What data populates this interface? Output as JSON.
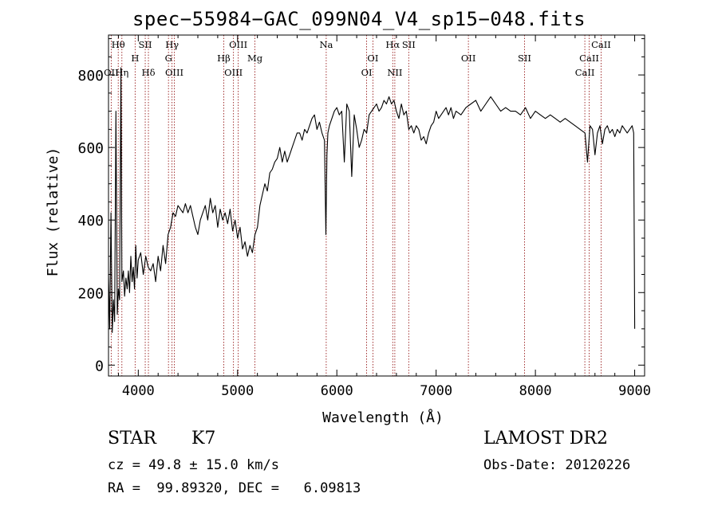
{
  "chart_data": {
    "type": "line",
    "title": "spec−55984−GAC_099N04_V4_sp15−048.fits",
    "xlabel": "Wavelength (Å)",
    "ylabel": "Flux (relative)",
    "xlim": [
      3700,
      9100
    ],
    "ylim": [
      -30,
      910
    ],
    "xticks": [
      4000,
      5000,
      6000,
      7000,
      8000,
      9000
    ],
    "yticks": [
      0,
      200,
      400,
      600,
      800
    ],
    "grid": false,
    "line_color": "#000000",
    "marker_color": "#8b0000",
    "series": [
      {
        "values_x": [
          3700,
          3712,
          3725,
          3738,
          3750,
          3762,
          3775,
          3788,
          3800,
          3812,
          3825,
          3835,
          3850,
          3862,
          3875,
          3888,
          3900,
          3912,
          3925,
          3938,
          3950,
          3962,
          3975,
          3988,
          4000,
          4025,
          4050,
          4075,
          4100,
          4125,
          4150,
          4175,
          4200,
          4225,
          4250,
          4275,
          4300,
          4325,
          4350,
          4375,
          4400,
          4425,
          4450,
          4475,
          4500,
          4525,
          4550,
          4575,
          4600,
          4625,
          4650,
          4675,
          4700,
          4725,
          4750,
          4775,
          4800,
          4825,
          4850,
          4875,
          4900,
          4925,
          4950,
          4975,
          5000,
          5025,
          5050,
          5075,
          5100,
          5125,
          5150,
          5175,
          5200,
          5225,
          5250,
          5275,
          5300,
          5325,
          5350,
          5375,
          5400,
          5425,
          5450,
          5475,
          5500,
          5525,
          5550,
          5575,
          5600,
          5625,
          5650,
          5675,
          5700,
          5725,
          5750,
          5775,
          5800,
          5825,
          5850,
          5875,
          5890,
          5900,
          5910,
          5925,
          5950,
          5975,
          6000,
          6025,
          6050,
          6075,
          6100,
          6125,
          6150,
          6175,
          6200,
          6225,
          6250,
          6275,
          6300,
          6325,
          6350,
          6375,
          6400,
          6425,
          6450,
          6475,
          6500,
          6525,
          6550,
          6575,
          6600,
          6625,
          6650,
          6675,
          6700,
          6725,
          6750,
          6775,
          6800,
          6825,
          6850,
          6875,
          6900,
          6925,
          6950,
          6975,
          7000,
          7025,
          7050,
          7075,
          7100,
          7125,
          7150,
          7175,
          7200,
          7250,
          7300,
          7350,
          7400,
          7450,
          7500,
          7550,
          7600,
          7650,
          7700,
          7750,
          7800,
          7850,
          7900,
          7950,
          8000,
          8050,
          8100,
          8150,
          8200,
          8250,
          8300,
          8350,
          8400,
          8450,
          8500,
          8525,
          8550,
          8575,
          8600,
          8625,
          8650,
          8675,
          8700,
          8725,
          8750,
          8775,
          8800,
          8825,
          8850,
          8875,
          8900,
          8925,
          8950,
          8975,
          8990,
          9000
        ],
        "values_y": [
          250,
          100,
          420,
          90,
          180,
          120,
          700,
          140,
          210,
          180,
          820,
          230,
          260,
          190,
          240,
          210,
          260,
          200,
          300,
          230,
          270,
          210,
          330,
          240,
          290,
          310,
          250,
          300,
          270,
          260,
          280,
          230,
          300,
          260,
          330,
          280,
          360,
          380,
          420,
          410,
          440,
          430,
          420,
          445,
          420,
          440,
          410,
          380,
          360,
          400,
          420,
          440,
          400,
          460,
          420,
          440,
          380,
          430,
          400,
          420,
          390,
          430,
          370,
          400,
          350,
          380,
          320,
          340,
          300,
          330,
          310,
          360,
          380,
          440,
          470,
          500,
          480,
          530,
          540,
          560,
          570,
          600,
          560,
          590,
          560,
          580,
          600,
          620,
          640,
          640,
          620,
          650,
          640,
          660,
          680,
          690,
          650,
          670,
          640,
          620,
          360,
          580,
          640,
          660,
          680,
          700,
          710,
          690,
          700,
          560,
          720,
          700,
          520,
          690,
          650,
          600,
          620,
          650,
          640,
          690,
          700,
          710,
          720,
          700,
          710,
          730,
          720,
          740,
          720,
          730,
          700,
          680,
          720,
          690,
          700,
          650,
          660,
          640,
          660,
          650,
          620,
          630,
          610,
          640,
          660,
          670,
          700,
          680,
          690,
          700,
          710,
          690,
          710,
          680,
          700,
          690,
          710,
          720,
          730,
          700,
          720,
          740,
          720,
          700,
          710,
          700,
          700,
          690,
          710,
          680,
          700,
          690,
          680,
          690,
          680,
          670,
          680,
          670,
          660,
          650,
          640,
          560,
          660,
          650,
          580,
          640,
          660,
          610,
          650,
          660,
          640,
          650,
          630,
          650,
          640,
          660,
          650,
          640,
          650,
          660,
          640,
          100
        ]
      }
    ],
    "line_labels": [
      {
        "label": "Hθ",
        "wave": 3798,
        "row": 0
      },
      {
        "label": "OII",
        "wave": 3727,
        "row": 2
      },
      {
        "label": "Hη",
        "wave": 3835,
        "row": 2
      },
      {
        "label": "SII",
        "wave": 4070,
        "row": 0
      },
      {
        "label": "H",
        "wave": 3968,
        "row": 1
      },
      {
        "label": "Hδ",
        "wave": 4102,
        "row": 2
      },
      {
        "label": "Hγ",
        "wave": 4340,
        "row": 0
      },
      {
        "label": "G",
        "wave": 4304,
        "row": 1
      },
      {
        "label": "OIII",
        "wave": 4363,
        "row": 2
      },
      {
        "label": "OIII",
        "wave": 5007,
        "row": 0
      },
      {
        "label": "Hβ",
        "wave": 4861,
        "row": 1
      },
      {
        "label": "OIII",
        "wave": 4959,
        "row": 2
      },
      {
        "label": "Mg",
        "wave": 5175,
        "row": 1
      },
      {
        "label": "Na",
        "wave": 5893,
        "row": 0
      },
      {
        "label": "OI",
        "wave": 6363,
        "row": 1
      },
      {
        "label": "OI",
        "wave": 6300,
        "row": 2
      },
      {
        "label": "Hα",
        "wave": 6563,
        "row": 0
      },
      {
        "label": "SII",
        "wave": 6724,
        "row": 0
      },
      {
        "label": "NII",
        "wave": 6584,
        "row": 2
      },
      {
        "label": "OII",
        "wave": 7325,
        "row": 1
      },
      {
        "label": "SII",
        "wave": 7890,
        "row": 1
      },
      {
        "label": "CaII",
        "wave": 8662,
        "row": 0
      },
      {
        "label": "CaII",
        "wave": 8542,
        "row": 1
      },
      {
        "label": "CaII",
        "wave": 8498,
        "row": 2
      }
    ]
  },
  "info": {
    "object_class": "STAR",
    "subclass": "K7",
    "survey": "LAMOST DR2",
    "redshift": "cz = 49.8 ± 15.0 km/s",
    "obs_date": "Obs-Date: 20120226",
    "coords": "RA =  99.89320, DEC =   6.09813"
  }
}
